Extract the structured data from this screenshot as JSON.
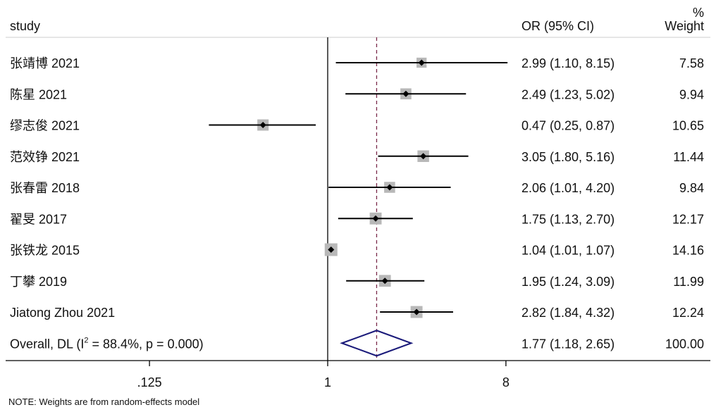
{
  "chart_data": {
    "type": "forest",
    "header": {
      "study_col": "study",
      "effect_col": "OR (95% CI)",
      "weight_unit": "%",
      "weight_col": "Weight"
    },
    "studies": [
      {
        "name": "张靖博 2021",
        "or": 2.99,
        "lo": 1.1,
        "hi": 8.15,
        "ci_text": "2.99 (1.10, 8.15)",
        "weight": "7.58"
      },
      {
        "name": "陈星 2021",
        "or": 2.49,
        "lo": 1.23,
        "hi": 5.02,
        "ci_text": "2.49 (1.23, 5.02)",
        "weight": "9.94"
      },
      {
        "name": "缪志俊 2021",
        "or": 0.47,
        "lo": 0.25,
        "hi": 0.87,
        "ci_text": "0.47 (0.25, 0.87)",
        "weight": "10.65"
      },
      {
        "name": "范效铮 2021",
        "or": 3.05,
        "lo": 1.8,
        "hi": 5.16,
        "ci_text": "3.05 (1.80, 5.16)",
        "weight": "11.44"
      },
      {
        "name": "张春雷 2018",
        "or": 2.06,
        "lo": 1.01,
        "hi": 4.2,
        "ci_text": "2.06 (1.01, 4.20)",
        "weight": "9.84"
      },
      {
        "name": "翟旻 2017",
        "or": 1.75,
        "lo": 1.13,
        "hi": 2.7,
        "ci_text": "1.75 (1.13, 2.70)",
        "weight": "12.17"
      },
      {
        "name": "张铁龙 2015",
        "or": 1.04,
        "lo": 1.01,
        "hi": 1.07,
        "ci_text": "1.04 (1.01, 1.07)",
        "weight": "14.16"
      },
      {
        "name": "丁攀 2019",
        "or": 1.95,
        "lo": 1.24,
        "hi": 3.09,
        "ci_text": "1.95 (1.24, 3.09)",
        "weight": "11.99"
      },
      {
        "name": "Jiatong Zhou 2021",
        "or": 2.82,
        "lo": 1.84,
        "hi": 4.32,
        "ci_text": "2.82 (1.84, 4.32)",
        "weight": "12.24"
      }
    ],
    "overall": {
      "label_prefix": "Overall, DL (I",
      "label_sup": "2",
      "label_suffix": " = 88.4%, p = 0.000)",
      "or": 1.77,
      "lo": 1.18,
      "hi": 2.65,
      "ci_text": "1.77 (1.18, 2.65)",
      "weight": "100.00"
    },
    "x_axis": {
      "scale": "log",
      "ticks": [
        0.125,
        1,
        8
      ],
      "tick_labels": [
        ".125",
        "1",
        "8"
      ]
    },
    "null_line": 1,
    "note": "NOTE: Weights are from random-effects model",
    "colors": {
      "ci_line": "#000000",
      "point": "#000000",
      "weight_box": "#b8b8b8",
      "overall_diamond": "#1a1a7a",
      "overall_line": "#7a2a4a",
      "rule": "#cccccc"
    }
  }
}
